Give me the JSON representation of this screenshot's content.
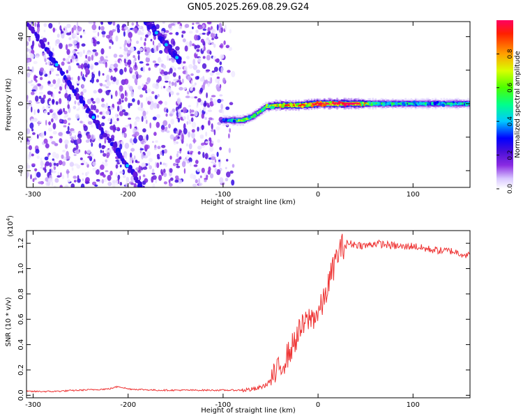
{
  "title": "GN05.2025.269.08.29.G24",
  "chart_data": [
    {
      "type": "heatmap",
      "name": "spectrogram",
      "xlabel": "Height of straight line (km)",
      "ylabel": "Frequency (Hz)",
      "xlim": [
        -307,
        160
      ],
      "ylim": [
        -50,
        49
      ],
      "xticks": [
        -300,
        -200,
        -100,
        0,
        100
      ],
      "yticks": [
        -40,
        -20,
        0,
        20,
        40
      ],
      "colorbar": {
        "label": "Normalized spectral amplitude",
        "range": [
          0,
          1
        ],
        "ticks": [
          0.0,
          0.2,
          0.4,
          0.6,
          0.8
        ],
        "tick_labels": [
          "0.0",
          "0.2",
          "0.4",
          "0.6",
          "0.8"
        ]
      },
      "noise_region_x": [
        -307,
        -100
      ],
      "signal_track": {
        "x": [
          -100,
          -90,
          -80,
          -70,
          -62,
          -55,
          -45,
          -35,
          -20,
          0,
          10,
          40,
          60,
          100,
          160
        ],
        "frequency": [
          -10,
          -10,
          -10,
          -8,
          -5,
          -2,
          -1,
          -1,
          -1,
          0,
          0,
          0,
          0,
          0,
          0
        ],
        "amplitude": [
          0.3,
          0.5,
          0.6,
          0.55,
          0.55,
          0.6,
          0.75,
          0.85,
          0.9,
          0.95,
          1.0,
          0.95,
          0.5,
          0.45,
          0.45
        ]
      },
      "diagonal_features": [
        {
          "x_start": -307,
          "freq_start": 49,
          "x_end": -185,
          "freq_end": -50
        },
        {
          "x_start": -180,
          "freq_start": 49,
          "x_end": -145,
          "freq_end": 25
        }
      ]
    },
    {
      "type": "line",
      "name": "snr",
      "xlabel": "Height of straight line (km)",
      "ylabel": "SNR (10 * v/v)",
      "multiplier_label": "(x10",
      "multiplier_exp": "4",
      "xlim": [
        -307,
        160
      ],
      "ylim": [
        -0.02,
        1.3
      ],
      "xticks": [
        -300,
        -200,
        -100,
        0,
        100
      ],
      "yticks": [
        0.0,
        0.2,
        0.4,
        0.6,
        0.8,
        1.0,
        1.2
      ],
      "ytick_labels": [
        "0.0",
        "0.2",
        "0.4",
        "0.6",
        "0.8",
        "1.0",
        "1.2"
      ],
      "color": "#ee3333",
      "series": {
        "x": [
          -307,
          -280,
          -250,
          -220,
          -210,
          -200,
          -170,
          -140,
          -110,
          -80,
          -65,
          -55,
          -50,
          -45,
          -40,
          -35,
          -30,
          -25,
          -20,
          -15,
          -10,
          -5,
          0,
          5,
          10,
          15,
          20,
          25,
          30,
          40,
          50,
          60,
          70,
          80,
          90,
          100,
          110,
          120,
          130,
          140,
          150,
          160
        ],
        "y": [
          0.03,
          0.03,
          0.04,
          0.05,
          0.07,
          0.05,
          0.04,
          0.04,
          0.04,
          0.04,
          0.05,
          0.08,
          0.12,
          0.16,
          0.22,
          0.28,
          0.34,
          0.42,
          0.5,
          0.55,
          0.6,
          0.62,
          0.65,
          0.72,
          0.85,
          0.98,
          1.1,
          1.17,
          1.2,
          1.19,
          1.18,
          1.2,
          1.19,
          1.18,
          1.17,
          1.18,
          1.16,
          1.15,
          1.14,
          1.14,
          1.12,
          1.1
        ]
      }
    }
  ]
}
